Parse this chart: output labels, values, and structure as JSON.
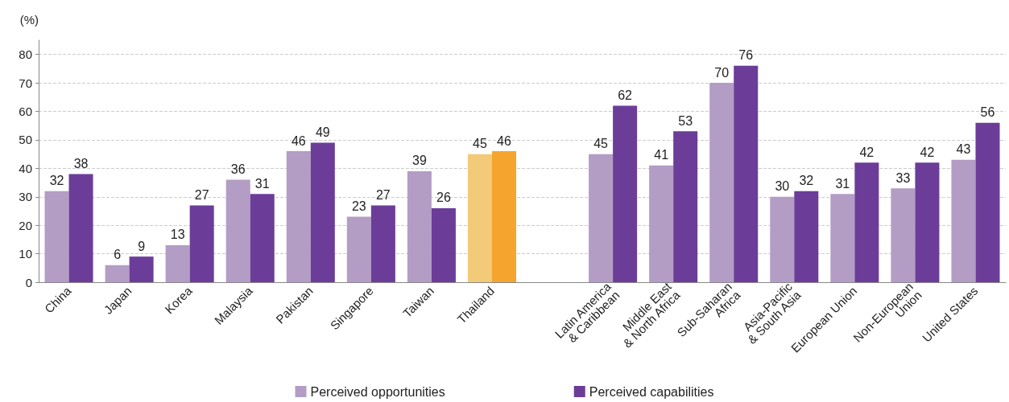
{
  "chart_data": {
    "type": "bar",
    "ylabel": "(%)",
    "categories": [
      "China",
      "Japan",
      "Korea",
      "Malaysia",
      "Pakistan",
      "Singapore",
      "Taiwan",
      "Thailand",
      null,
      "Latin America\n& Caribbean",
      "Middle East\n& North Africa",
      "Sub-Saharan\nAfrica",
      "Asia-Pacific\n& South Asia",
      "European Union",
      "Non-European\nUnion",
      "United States"
    ],
    "series": [
      {
        "name": "Perceived opportunities",
        "color": "#b39dc4",
        "colors": [
          "#b39dc4",
          "#b39dc4",
          "#b39dc4",
          "#b39dc4",
          "#b39dc4",
          "#b39dc4",
          "#b39dc4",
          "#f2ca78",
          "#b39dc4",
          "#b39dc4",
          "#b39dc4",
          "#b39dc4",
          "#b39dc4",
          "#b39dc4",
          "#b39dc4",
          "#b39dc4"
        ],
        "values": [
          32,
          6,
          13,
          36,
          46,
          23,
          39,
          45,
          null,
          45,
          41,
          70,
          30,
          31,
          33,
          43
        ]
      },
      {
        "name": "Perceived capabilities",
        "color": "#6b3d99",
        "colors": [
          "#6b3d99",
          "#6b3d99",
          "#6b3d99",
          "#6b3d99",
          "#6b3d99",
          "#6b3d99",
          "#6b3d99",
          "#f5a52e",
          "#6b3d99",
          "#6b3d99",
          "#6b3d99",
          "#6b3d99",
          "#6b3d99",
          "#6b3d99",
          "#6b3d99",
          "#6b3d99"
        ],
        "values": [
          38,
          9,
          27,
          31,
          49,
          27,
          26,
          46,
          null,
          62,
          53,
          76,
          32,
          42,
          42,
          56
        ]
      }
    ],
    "ylim": [
      0,
      85
    ],
    "yticks": [
      0,
      10,
      20,
      30,
      40,
      50,
      60,
      70,
      80
    ],
    "grid": "y",
    "legend": "bottom",
    "data_labels": true
  }
}
